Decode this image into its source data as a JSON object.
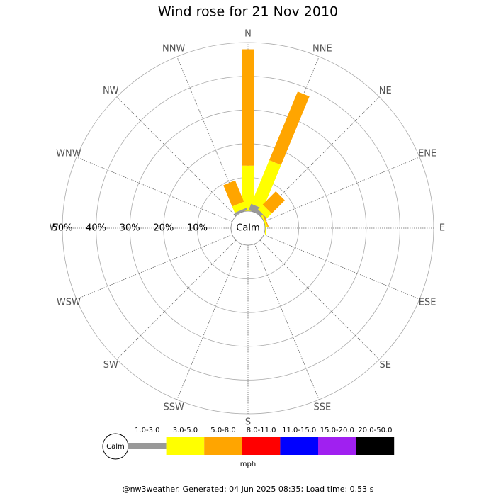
{
  "chart_data": {
    "type": "windrose",
    "title": "Wind rose for 21 Nov 2010",
    "categories": [
      "N",
      "NNE",
      "NE",
      "ENE",
      "E",
      "ESE",
      "SE",
      "SSE",
      "S",
      "SSW",
      "SW",
      "WSW",
      "W",
      "WNW",
      "NW",
      "NNW"
    ],
    "rlim": [
      0,
      50
    ],
    "rticks": [
      {
        "value": 10,
        "label": "10%"
      },
      {
        "value": 20,
        "label": "20%"
      },
      {
        "value": 30,
        "label": "30%"
      },
      {
        "value": 40,
        "label": "40%"
      },
      {
        "value": 50,
        "label": "50%"
      }
    ],
    "calm_label": "Calm",
    "unit": "mph",
    "series": [
      {
        "name": "1.0-3.0",
        "color": "#999999",
        "values": [
          0,
          2,
          1,
          0,
          0,
          0,
          0,
          0,
          0,
          0,
          0,
          0,
          0,
          0,
          0,
          0.7
        ]
      },
      {
        "name": "3.0-5.0",
        "color": "#ffff00",
        "values": [
          13.5,
          14,
          2,
          0.5,
          0.3,
          0,
          0,
          0,
          0,
          0,
          0,
          0,
          0,
          0,
          0,
          2
        ]
      },
      {
        "name": "5.0-8.0",
        "color": "#ffa500",
        "values": [
          34.5,
          22,
          5.5,
          0.3,
          0,
          0,
          0,
          0,
          0,
          0,
          0,
          0,
          0,
          0,
          0,
          6.8
        ]
      },
      {
        "name": "8.0-11.0",
        "color": "#ff0000",
        "values": [
          0,
          0,
          0,
          0,
          0,
          0,
          0,
          0,
          0,
          0,
          0,
          0,
          0,
          0,
          0,
          0
        ]
      },
      {
        "name": "11.0-15.0",
        "color": "#0000ff",
        "values": [
          0,
          0,
          0,
          0,
          0,
          0,
          0,
          0,
          0,
          0,
          0,
          0,
          0,
          0,
          0,
          0
        ]
      },
      {
        "name": "15.0-20.0",
        "color": "#a020f0",
        "values": [
          0,
          0,
          0,
          0,
          0,
          0,
          0,
          0,
          0,
          0,
          0,
          0,
          0,
          0,
          0,
          0
        ]
      },
      {
        "name": "20.0-50.0",
        "color": "#000000",
        "values": [
          0,
          0,
          0,
          0,
          0,
          0,
          0,
          0,
          0,
          0,
          0,
          0,
          0,
          0,
          0,
          0
        ]
      }
    ],
    "footer": "@nw3weather. Generated: 04 Jun 2025 08:35; Load time: 0.53 s"
  }
}
